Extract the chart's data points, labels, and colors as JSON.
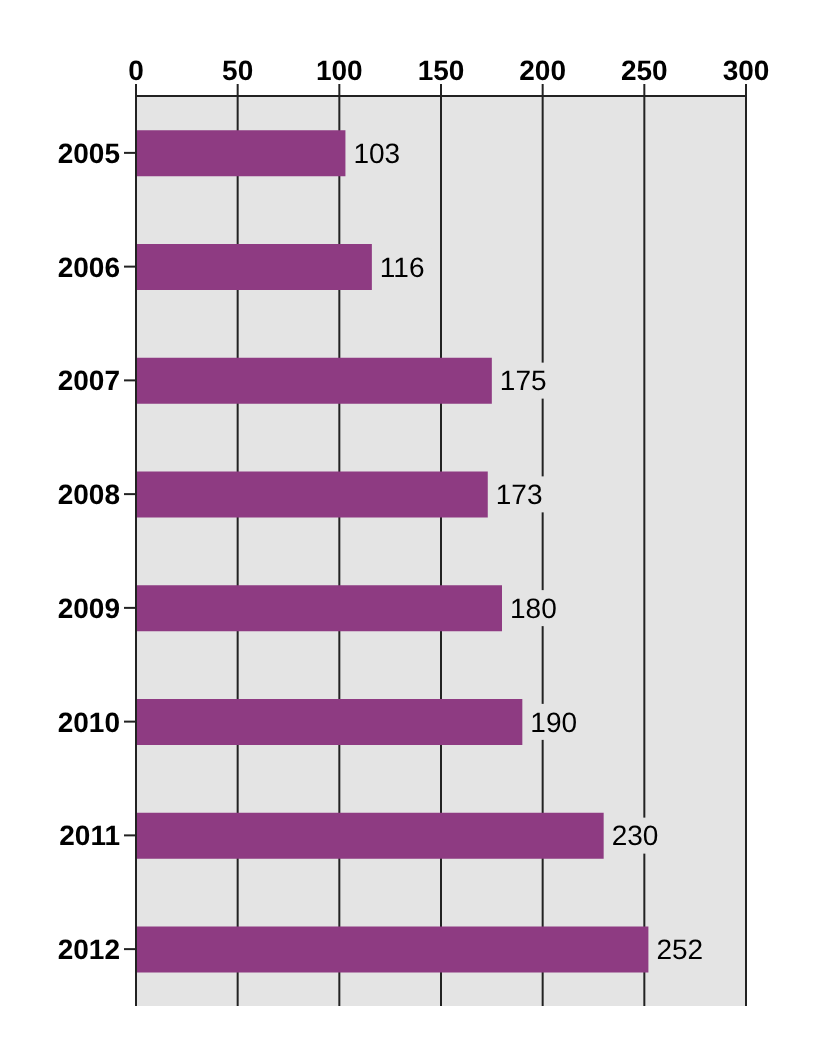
{
  "chart_data": {
    "type": "bar",
    "orientation": "horizontal",
    "categories": [
      "2005",
      "2006",
      "2007",
      "2008",
      "2009",
      "2010",
      "2011",
      "2012"
    ],
    "values": [
      103,
      116,
      175,
      173,
      180,
      190,
      230,
      252
    ],
    "color": "#8e3b82",
    "xlim": [
      0,
      300
    ],
    "xticks": [
      0,
      50,
      100,
      150,
      200,
      250,
      300
    ],
    "grid": "x",
    "data_labels": true
  }
}
